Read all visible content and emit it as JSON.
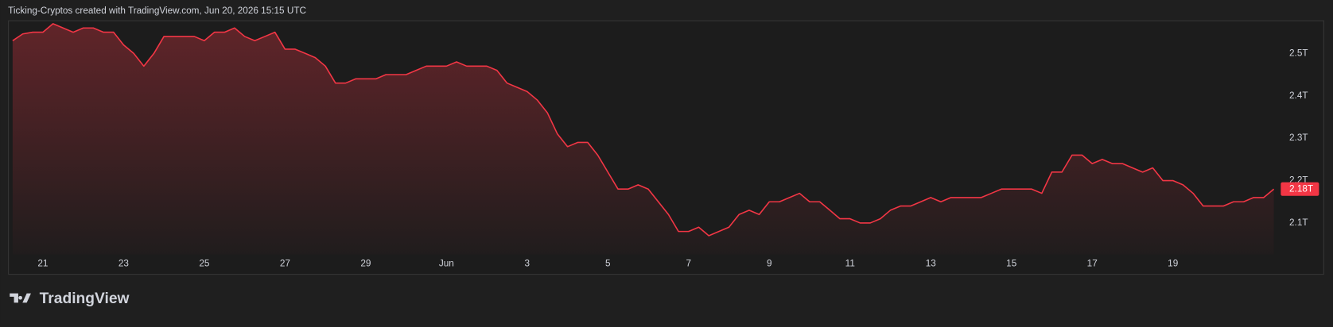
{
  "header": {
    "text": "Ticking-Cryptos created with TradingView.com, Jun 20, 2026 15:15 UTC"
  },
  "brand": {
    "text": "TradingView"
  },
  "chart_data": {
    "type": "area",
    "categories": [
      null,
      null,
      null,
      "21",
      null,
      null,
      null,
      null,
      null,
      null,
      null,
      "23",
      null,
      null,
      null,
      null,
      null,
      null,
      null,
      "25",
      null,
      null,
      null,
      null,
      null,
      null,
      null,
      "27",
      null,
      null,
      null,
      null,
      null,
      null,
      null,
      "29",
      null,
      null,
      null,
      null,
      null,
      null,
      null,
      "Jun",
      null,
      null,
      null,
      null,
      null,
      null,
      null,
      "3",
      null,
      null,
      null,
      null,
      null,
      null,
      null,
      "5",
      null,
      null,
      null,
      null,
      null,
      null,
      null,
      "7",
      null,
      null,
      null,
      null,
      null,
      null,
      null,
      "9",
      null,
      null,
      null,
      null,
      null,
      null,
      null,
      "11",
      null,
      null,
      null,
      null,
      null,
      null,
      null,
      "13",
      null,
      null,
      null,
      null,
      null,
      null,
      null,
      "15",
      null,
      null,
      null,
      null,
      null,
      null,
      null,
      "17",
      null,
      null,
      null,
      null,
      null,
      null,
      null,
      "19",
      null,
      null,
      null,
      null,
      null,
      null,
      null,
      null,
      null,
      null
    ],
    "series": [
      {
        "color": "#f23645",
        "values": [
          2.53,
          2.546,
          2.55,
          2.55,
          2.57,
          2.56,
          2.55,
          2.56,
          2.56,
          2.55,
          2.55,
          2.52,
          2.5,
          2.47,
          2.5,
          2.54,
          2.54,
          2.54,
          2.54,
          2.53,
          2.55,
          2.55,
          2.56,
          2.54,
          2.53,
          2.54,
          2.55,
          2.51,
          2.51,
          2.5,
          2.49,
          2.47,
          2.43,
          2.43,
          2.44,
          2.44,
          2.44,
          2.45,
          2.45,
          2.45,
          2.46,
          2.47,
          2.47,
          2.47,
          2.48,
          2.47,
          2.47,
          2.47,
          2.46,
          2.43,
          2.42,
          2.41,
          2.39,
          2.36,
          2.31,
          2.28,
          2.29,
          2.29,
          2.26,
          2.22,
          2.18,
          2.18,
          2.19,
          2.18,
          2.15,
          2.12,
          2.08,
          2.08,
          2.09,
          2.07,
          2.08,
          2.09,
          2.12,
          2.13,
          2.12,
          2.15,
          2.15,
          2.16,
          2.17,
          2.15,
          2.15,
          2.13,
          2.11,
          2.11,
          2.1,
          2.1,
          2.11,
          2.13,
          2.14,
          2.14,
          2.15,
          2.16,
          2.15,
          2.16,
          2.16,
          2.16,
          2.16,
          2.17,
          2.18,
          2.18,
          2.18,
          2.18,
          2.17,
          2.22,
          2.22,
          2.26,
          2.26,
          2.24,
          2.25,
          2.24,
          2.24,
          2.23,
          2.22,
          2.23,
          2.2,
          2.2,
          2.19,
          2.17,
          2.14,
          2.14,
          2.14,
          2.15,
          2.15,
          2.16,
          2.16,
          2.18
        ],
        "value_labels": [
          null,
          null,
          null,
          null,
          null,
          null,
          null,
          null,
          null,
          null,
          null,
          null,
          null,
          null,
          null,
          null,
          null,
          null,
          null,
          null,
          null,
          null,
          null,
          null,
          null,
          null,
          null,
          null,
          null,
          null,
          null,
          null,
          null,
          null,
          null,
          null,
          null,
          null,
          null,
          null,
          null,
          null,
          null,
          null,
          null,
          null,
          null,
          null,
          null,
          null,
          null,
          null,
          null,
          null,
          null,
          null,
          null,
          null,
          null,
          null,
          null,
          null,
          null,
          null,
          null,
          null,
          null,
          null,
          null,
          null,
          null,
          null,
          null,
          null,
          null,
          null,
          null,
          null,
          null,
          null,
          null,
          null,
          null,
          null,
          null,
          null,
          null,
          null,
          null,
          null,
          null,
          null,
          null,
          null,
          null,
          null,
          null,
          null,
          null,
          null,
          null,
          null,
          null,
          null,
          null,
          null,
          null,
          null,
          null,
          null,
          null,
          null,
          null,
          null,
          null,
          null,
          null,
          null,
          null,
          null,
          null,
          null,
          null,
          null,
          null,
          "2.18T"
        ]
      }
    ],
    "ylim": [
      2.026,
      2.576
    ],
    "yticks": [
      {
        "value": 2.1,
        "label": "2.1T"
      },
      {
        "value": 2.2,
        "label": "2.2T"
      },
      {
        "value": 2.3,
        "label": "2.3T"
      },
      {
        "value": 2.4,
        "label": "2.4T"
      },
      {
        "value": 2.5,
        "label": "2.5T"
      }
    ],
    "grid": false
  }
}
